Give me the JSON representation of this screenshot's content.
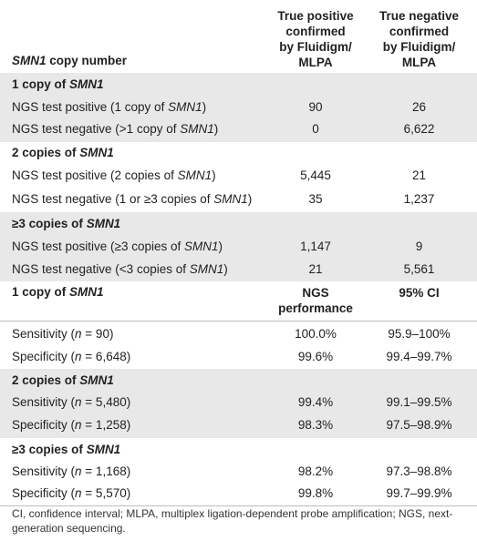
{
  "header": {
    "col1": "SMN1 copy number",
    "col2": [
      "True positive",
      "confirmed",
      "by Fluidigm/",
      "MLPA"
    ],
    "col3": [
      "True negative",
      "confirmed",
      "by Fluidigm/",
      "MLPA"
    ]
  },
  "sec1": {
    "title": "1 copy of SMN1",
    "rows": [
      {
        "label": "NGS test positive (1 copy of SMN1)",
        "tp": "90",
        "tn": "26"
      },
      {
        "label": "NGS test negative (>1 copy of SMN1)",
        "tp": "0",
        "tn": "6,622"
      }
    ]
  },
  "sec2": {
    "title": "2 copies of SMN1",
    "rows": [
      {
        "label": "NGS test positive (2 copies of SMN1)",
        "tp": "5,445",
        "tn": "21"
      },
      {
        "label": "NGS test negative (1 or ≥3 copies of SMN1)",
        "tp": "35",
        "tn": "1,237"
      }
    ]
  },
  "sec3": {
    "title": "≥3 copies of SMN1",
    "rows": [
      {
        "label": "NGS test positive (≥3 copies of SMN1)",
        "tp": "1,147",
        "tn": "9"
      },
      {
        "label": "NGS test negative (<3 copies of SMN1)",
        "tp": "21",
        "tn": "5,561"
      }
    ]
  },
  "perf_header": {
    "title": "1 copy of SMN1",
    "col2": [
      "NGS",
      "performance"
    ],
    "col3": "95% CI"
  },
  "perf1": {
    "rows": [
      {
        "label": "Sensitivity (n = 90)",
        "perf": "100.0%",
        "ci": "95.9–100%"
      },
      {
        "label": "Specificity (n = 6,648)",
        "perf": "99.6%",
        "ci": "99.4–99.7%"
      }
    ]
  },
  "perf2": {
    "title": "2 copies of SMN1",
    "rows": [
      {
        "label": "Sensitivity (n = 5,480)",
        "perf": "99.4%",
        "ci": "99.1–99.5%"
      },
      {
        "label": "Specificity (n = 1,258)",
        "perf": "98.3%",
        "ci": "97.5–98.9%"
      }
    ]
  },
  "perf3": {
    "title": "≥3 copies of SMN1",
    "rows": [
      {
        "label": "Sensitivity (n = 1,168)",
        "perf": "98.2%",
        "ci": "97.3–98.8%"
      },
      {
        "label": "Specificity (n = 5,570)",
        "perf": "99.8%",
        "ci": "99.7–99.9%"
      }
    ]
  },
  "footnote": "CI, confidence interval; MLPA, multiplex ligation-dependent probe amplification; NGS, next-generation sequencing."
}
